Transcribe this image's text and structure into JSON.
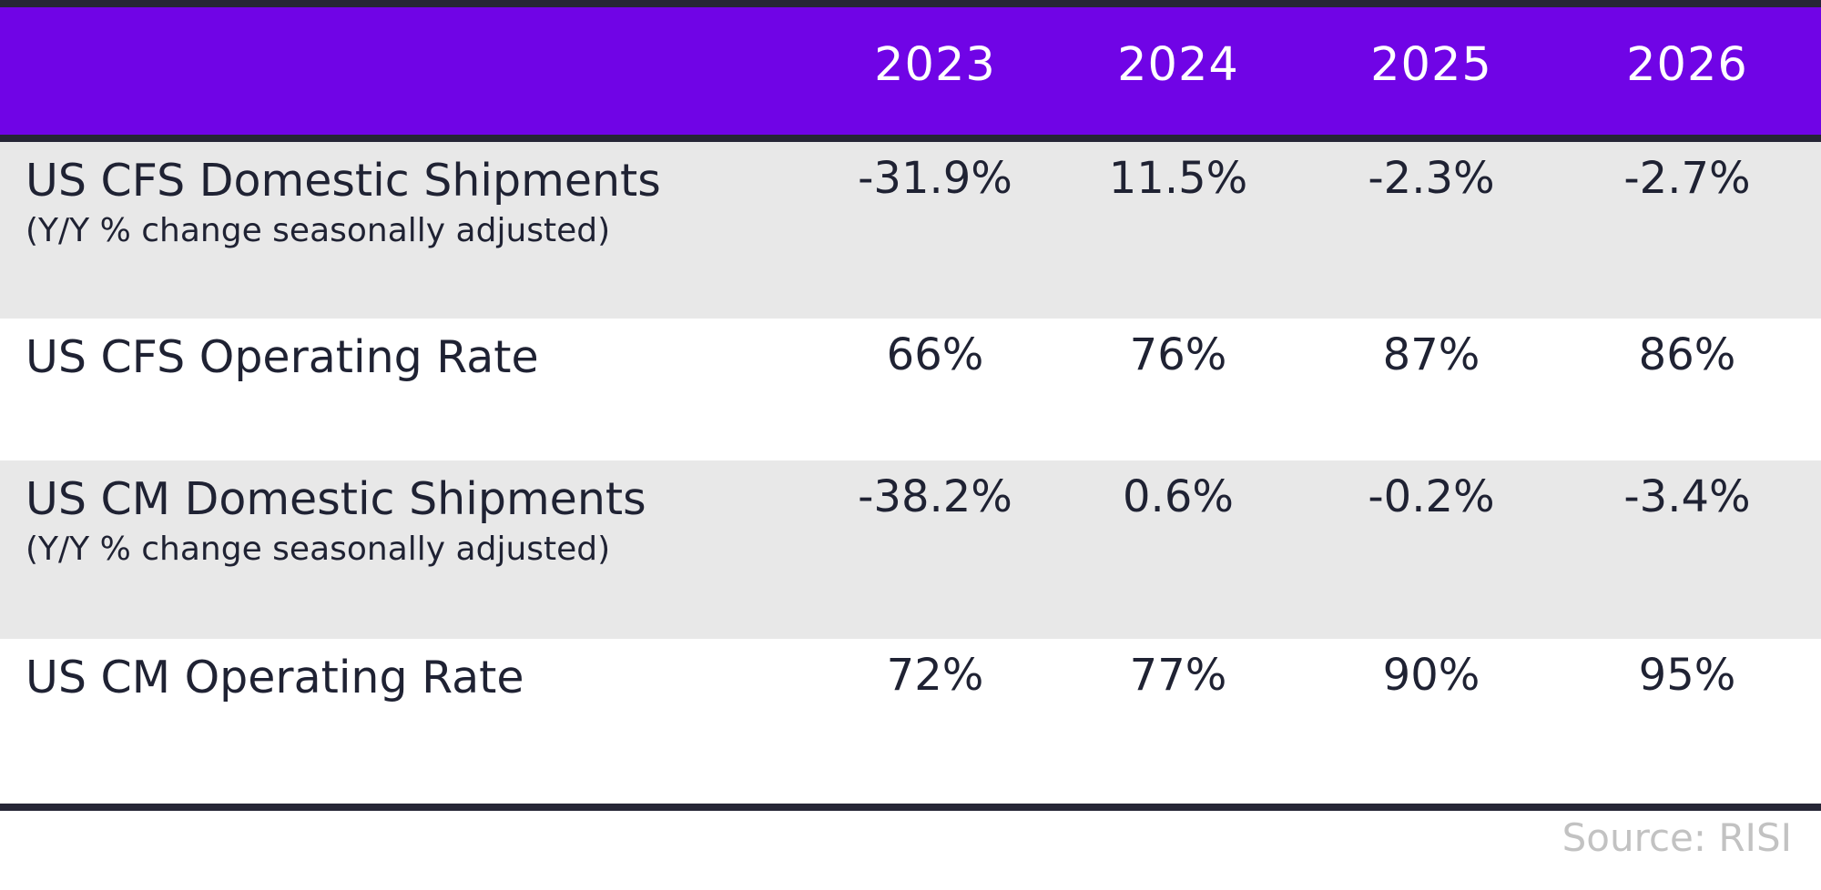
{
  "chart_data": {
    "type": "table",
    "columns": [
      "2023",
      "2024",
      "2025",
      "2026"
    ],
    "rows": [
      {
        "label": "US CFS Domestic Shipments",
        "sublabel": "(Y/Y % change seasonally adjusted)",
        "values": [
          "-31.9%",
          "11.5%",
          "-2.3%",
          "-2.7%"
        ]
      },
      {
        "label": "US CFS Operating Rate",
        "values": [
          "66%",
          "76%",
          "87%",
          "86%"
        ]
      },
      {
        "label": "US CM Domestic Shipments",
        "sublabel": "(Y/Y % change seasonally adjusted)",
        "values": [
          "-38.2%",
          "0.6%",
          "-0.2%",
          "-3.4%"
        ]
      },
      {
        "label": "US CM Operating Rate",
        "values": [
          "72%",
          "77%",
          "90%",
          "95%"
        ]
      }
    ],
    "source": "Source: RISI"
  },
  "colors": {
    "header_background": "#7004e6",
    "rule": "#262636",
    "shaded_row": "#e8e8e8",
    "source_text": "#c2c2c2"
  }
}
